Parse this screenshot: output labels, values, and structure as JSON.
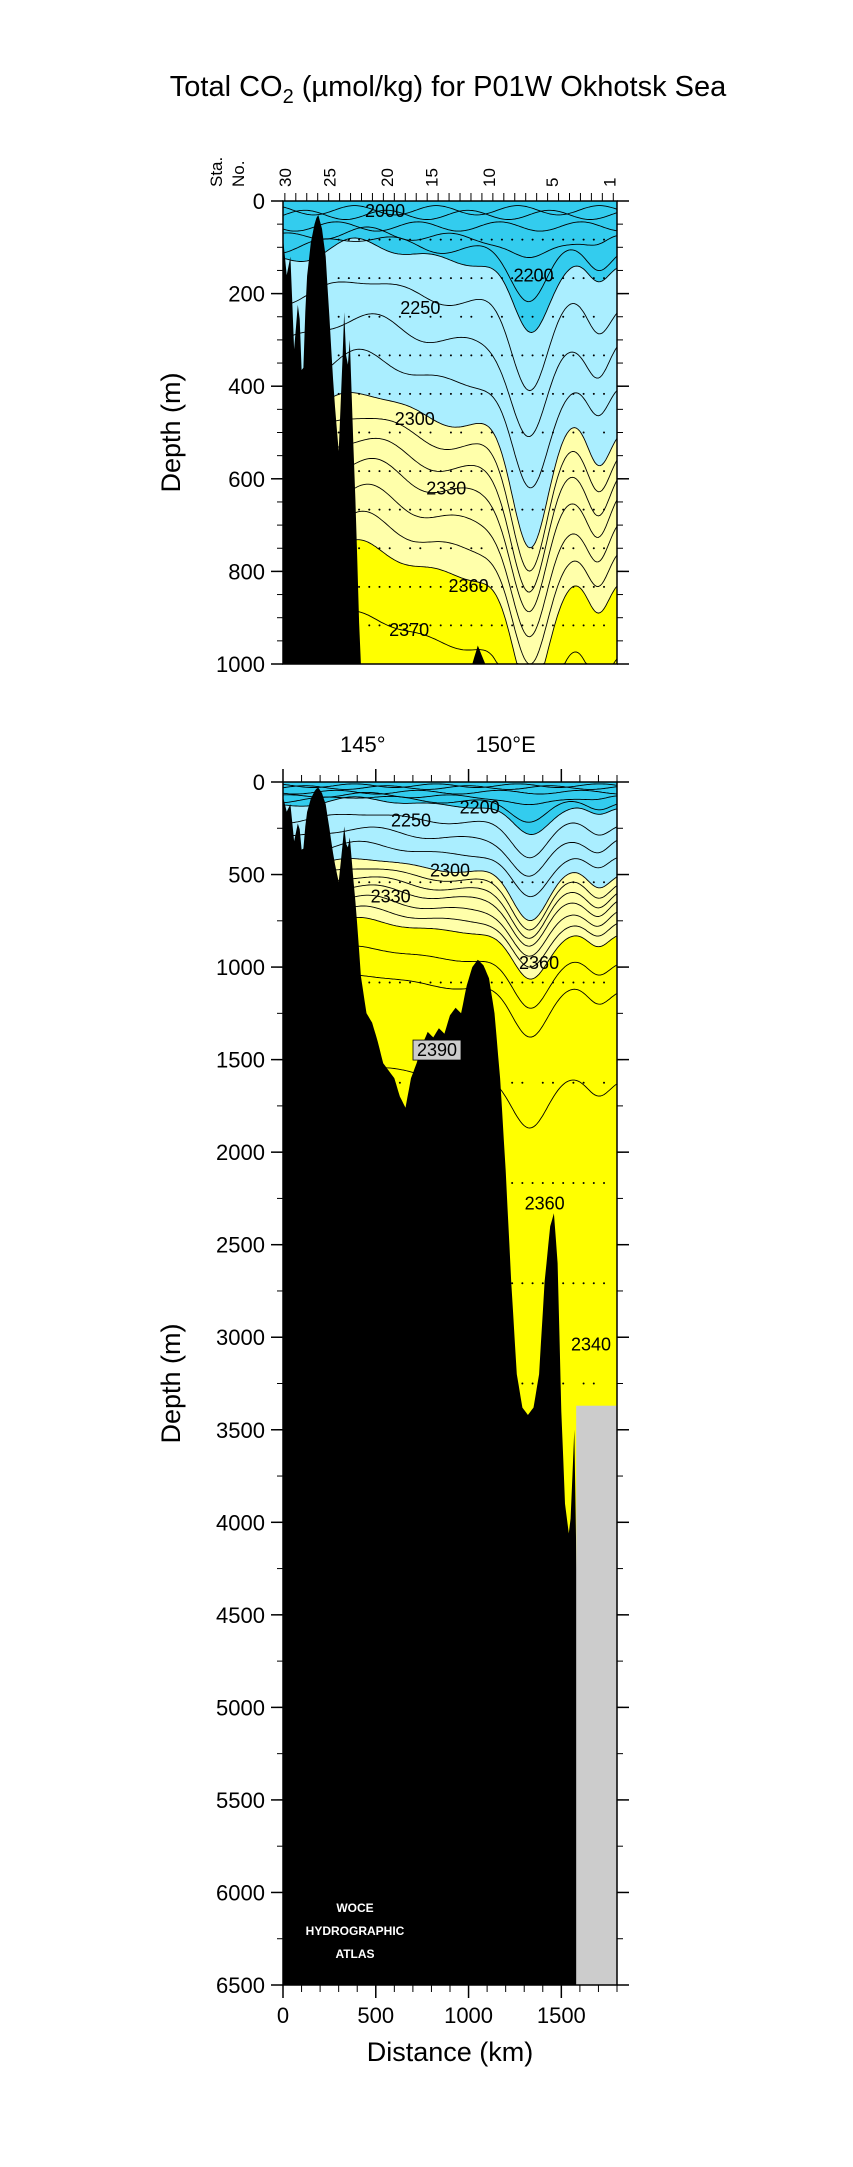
{
  "title": {
    "prefix": "Total CO",
    "subscript": "2",
    "suffix": " (µmol/kg) for P01W Okhotsk Sea"
  },
  "logo": [
    "WOCE",
    "HYDROGRAPHIC",
    "ATLAS"
  ],
  "colors": {
    "cyan": "#33ccee",
    "light_cyan": "#aaeeff",
    "pale_yellow": "#ffffaa",
    "yellow": "#ffff00",
    "no_data": "#cccccc",
    "bottom": "#000000"
  },
  "chart_data": [
    {
      "type": "heatmap",
      "panel": "upper",
      "title": "Total CO2 (µmol/kg) for P01W Okhotsk Sea",
      "xlabel": "",
      "ylabel": "Depth (m)",
      "xlim": [
        0,
        1800
      ],
      "ylim": [
        1000,
        0
      ],
      "y_ticks": [
        0,
        200,
        400,
        600,
        800,
        1000
      ],
      "station_axis": {
        "label_line1": "Sta.",
        "label_line2": "No.",
        "labels": [
          "30",
          "25",
          "20",
          "15",
          "10",
          "5",
          "1"
        ]
      },
      "contour_labels": [
        {
          "text": "2000",
          "x": 550,
          "depth": 30
        },
        {
          "text": "2200",
          "x": 1350,
          "depth": 170
        },
        {
          "text": "2250",
          "x": 740,
          "depth": 240
        },
        {
          "text": "2300",
          "x": 710,
          "depth": 480
        },
        {
          "text": "2330",
          "x": 880,
          "depth": 630
        },
        {
          "text": "2360",
          "x": 1000,
          "depth": 840
        },
        {
          "text": "2370",
          "x": 680,
          "depth": 935
        }
      ],
      "bands": [
        {
          "limit": 2200,
          "color": "#33ccee"
        },
        {
          "limit": 2300,
          "color": "#aaeeff"
        },
        {
          "limit": 2360,
          "color": "#ffffaa"
        },
        {
          "limit": 9999,
          "color": "#ffff00"
        }
      ]
    },
    {
      "type": "heatmap",
      "panel": "lower",
      "xlabel": "Distance (km)",
      "ylabel": "Depth (m)",
      "xlim": [
        0,
        1800
      ],
      "ylim": [
        6500,
        0
      ],
      "x_ticks": [
        0,
        500,
        1000,
        1500
      ],
      "y_ticks": [
        0,
        500,
        1000,
        1500,
        2000,
        2500,
        3000,
        3500,
        4000,
        4500,
        5000,
        5500,
        6000,
        6500
      ],
      "longitude_labels": [
        {
          "text": "145°",
          "x": 430
        },
        {
          "text": "150°E",
          "x": 1200
        }
      ],
      "contour_labels": [
        {
          "text": "2200",
          "x": 1060,
          "depth": 160
        },
        {
          "text": "2250",
          "x": 690,
          "depth": 230
        },
        {
          "text": "2300",
          "x": 900,
          "depth": 500
        },
        {
          "text": "2330",
          "x": 580,
          "depth": 640
        },
        {
          "text": "2360",
          "x": 1380,
          "depth": 1000
        },
        {
          "text": "2390",
          "x": 830,
          "depth": 1470,
          "boxed": true
        },
        {
          "text": "2360",
          "x": 1410,
          "depth": 2300
        },
        {
          "text": "2340",
          "x": 1660,
          "depth": 3060
        }
      ],
      "no_data_region": {
        "x_from": 1580,
        "x_to": 1800,
        "depth_from": 3370,
        "depth_to": 6500
      }
    }
  ]
}
